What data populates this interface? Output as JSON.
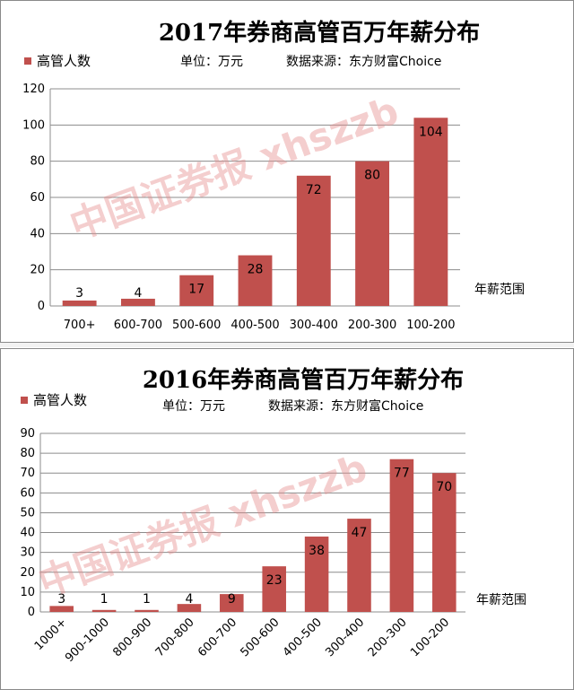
{
  "chart_data": [
    {
      "type": "bar",
      "title": "2017年券商高管百万年薪分布",
      "subtitle_unit": "单位：万元",
      "subtitle_source": "数据来源：东方财富Choice",
      "legend": "高管人数",
      "xlabel": "年薪范围",
      "watermark": "中国证券报 xhszzb",
      "categories": [
        "700+",
        "600-700",
        "500-600",
        "400-500",
        "300-400",
        "200-300",
        "100-200"
      ],
      "series": [
        {
          "name": "高管人数",
          "values": [
            3,
            4,
            17,
            28,
            72,
            80,
            104
          ]
        }
      ],
      "ylim": [
        0,
        120
      ],
      "yticks": [
        0,
        20,
        40,
        60,
        80,
        100,
        120
      ],
      "grid": true,
      "legend_position": "top-left",
      "rotate_x_labels": false,
      "color": "#c0504d"
    },
    {
      "type": "bar",
      "title": "2016年券商高管百万年薪分布",
      "subtitle_unit": "单位：万元",
      "subtitle_source": "数据来源：东方财富Choice",
      "legend": "高管人数",
      "xlabel": "年薪范围",
      "watermark": "中国证券报 xhszzb",
      "categories": [
        "1000+",
        "900-1000",
        "800-900",
        "700-800",
        "600-700",
        "500-600",
        "400-500",
        "300-400",
        "200-300",
        "100-200"
      ],
      "series": [
        {
          "name": "高管人数",
          "values": [
            3,
            1,
            1,
            4,
            9,
            23,
            38,
            47,
            77,
            70
          ]
        }
      ],
      "ylim": [
        0,
        90
      ],
      "yticks": [
        0,
        10,
        20,
        30,
        40,
        50,
        60,
        70,
        80,
        90
      ],
      "grid": true,
      "legend_position": "top-left",
      "rotate_x_labels": true,
      "color": "#c0504d"
    }
  ]
}
